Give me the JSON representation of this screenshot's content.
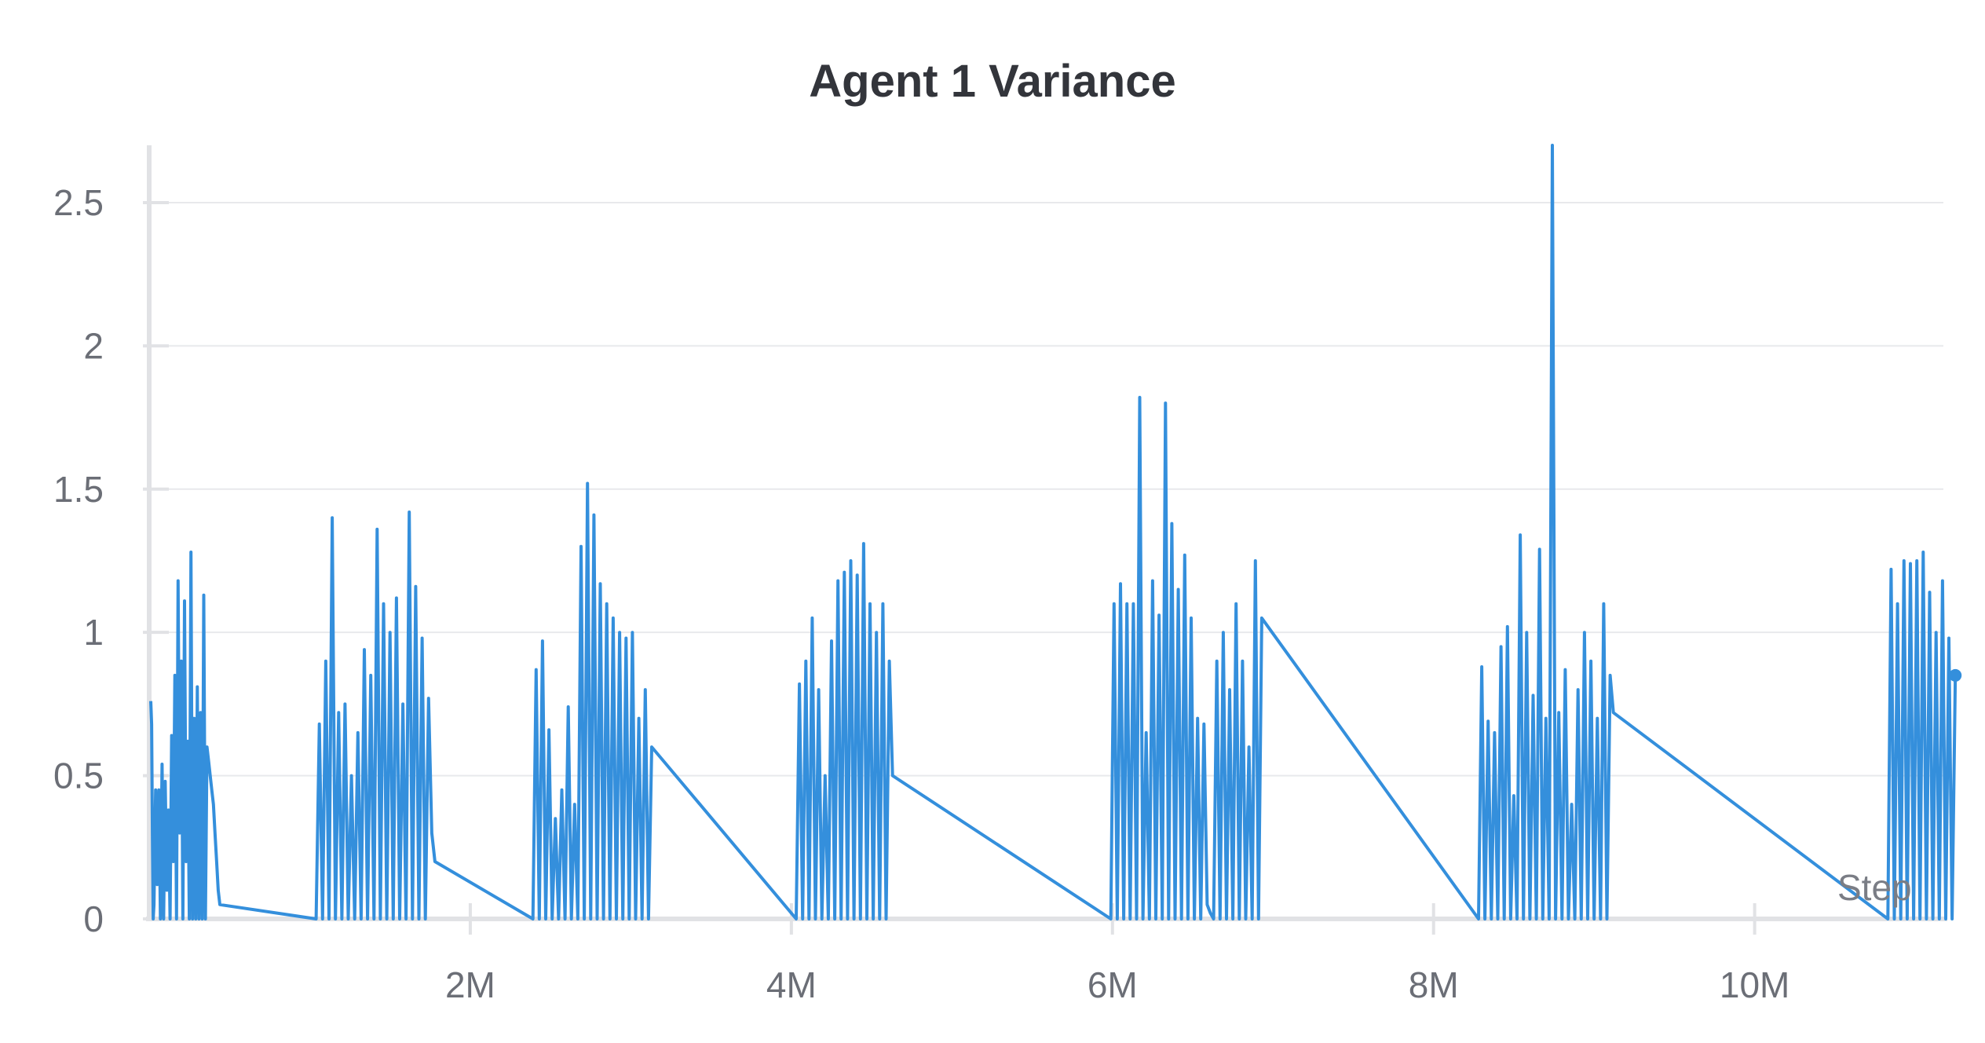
{
  "chart_data": {
    "type": "line",
    "title": "Agent 1 Variance",
    "xlabel": "Step",
    "ylabel": "",
    "xlim": [
      0,
      11200000
    ],
    "ylim": [
      0,
      2.7
    ],
    "grid": true,
    "legend": "none",
    "x_ticks": [
      {
        "value": 2000000,
        "label": "2M"
      },
      {
        "value": 4000000,
        "label": "4M"
      },
      {
        "value": 6000000,
        "label": "6M"
      },
      {
        "value": 8000000,
        "label": "8M"
      },
      {
        "value": 10000000,
        "label": "10M"
      }
    ],
    "y_ticks": [
      {
        "value": 0,
        "label": "0"
      },
      {
        "value": 0.5,
        "label": "0.5"
      },
      {
        "value": 1,
        "label": "1"
      },
      {
        "value": 1.5,
        "label": "1.5"
      },
      {
        "value": 2,
        "label": "2"
      },
      {
        "value": 2.5,
        "label": "2.5"
      }
    ],
    "color": "#348fdc",
    "series": [
      {
        "name": "",
        "x": [
          10000,
          15000,
          20000,
          25000,
          30000,
          40000,
          50000,
          60000,
          70000,
          80000,
          90000,
          100000,
          110000,
          120000,
          130000,
          140000,
          150000,
          160000,
          170000,
          180000,
          190000,
          200000,
          210000,
          220000,
          230000,
          240000,
          250000,
          260000,
          270000,
          280000,
          290000,
          300000,
          310000,
          320000,
          330000,
          340000,
          350000,
          360000,
          370000,
          380000,
          390000,
          400000,
          410000,
          420000,
          430000,
          440000,
          1040000,
          1060000,
          1080000,
          1100000,
          1120000,
          1140000,
          1160000,
          1180000,
          1200000,
          1220000,
          1240000,
          1260000,
          1280000,
          1300000,
          1320000,
          1340000,
          1360000,
          1380000,
          1400000,
          1420000,
          1440000,
          1460000,
          1480000,
          1500000,
          1520000,
          1540000,
          1560000,
          1580000,
          1600000,
          1620000,
          1640000,
          1660000,
          1680000,
          1700000,
          1720000,
          1740000,
          1760000,
          1780000,
          2390000,
          2410000,
          2430000,
          2450000,
          2470000,
          2490000,
          2510000,
          2530000,
          2550000,
          2570000,
          2590000,
          2610000,
          2630000,
          2650000,
          2670000,
          2690000,
          2710000,
          2730000,
          2750000,
          2770000,
          2790000,
          2810000,
          2830000,
          2850000,
          2870000,
          2890000,
          2910000,
          2930000,
          2950000,
          2970000,
          2990000,
          3010000,
          3030000,
          3050000,
          3070000,
          3090000,
          3110000,
          3130000,
          4030000,
          4050000,
          4070000,
          4090000,
          4110000,
          4130000,
          4150000,
          4170000,
          4190000,
          4210000,
          4230000,
          4250000,
          4270000,
          4290000,
          4310000,
          4330000,
          4350000,
          4370000,
          4390000,
          4410000,
          4430000,
          4450000,
          4470000,
          4490000,
          4510000,
          4530000,
          4550000,
          4570000,
          4590000,
          4610000,
          4630000,
          5990000,
          6010000,
          6030000,
          6050000,
          6070000,
          6090000,
          6110000,
          6130000,
          6150000,
          6170000,
          6190000,
          6210000,
          6230000,
          6250000,
          6270000,
          6290000,
          6310000,
          6330000,
          6350000,
          6370000,
          6390000,
          6410000,
          6430000,
          6450000,
          6470000,
          6490000,
          6510000,
          6530000,
          6550000,
          6570000,
          6590000,
          6610000,
          6630000,
          6650000,
          6670000,
          6690000,
          6710000,
          6730000,
          6750000,
          6770000,
          6790000,
          6810000,
          6830000,
          6850000,
          6870000,
          6890000,
          6910000,
          6930000,
          8280000,
          8300000,
          8320000,
          8340000,
          8360000,
          8380000,
          8400000,
          8420000,
          8440000,
          8460000,
          8480000,
          8500000,
          8520000,
          8540000,
          8560000,
          8580000,
          8600000,
          8620000,
          8640000,
          8660000,
          8680000,
          8700000,
          8720000,
          8740000,
          8760000,
          8780000,
          8800000,
          8820000,
          8840000,
          8860000,
          8880000,
          8900000,
          8920000,
          8940000,
          8960000,
          8980000,
          9000000,
          9020000,
          9040000,
          9060000,
          9080000,
          9100000,
          9120000,
          10830000,
          10850000,
          10870000,
          10890000,
          10910000,
          10930000,
          10950000,
          10970000,
          10990000,
          11010000,
          11030000,
          11050000,
          11070000,
          11090000,
          11110000,
          11130000,
          11150000,
          11170000,
          11190000,
          11210000,
          11230000,
          11250000
        ],
        "y": [
          0.76,
          0.68,
          0.3,
          0.0,
          0.05,
          0.45,
          0.12,
          0.45,
          0.0,
          0.54,
          0.0,
          0.48,
          0.1,
          0.38,
          0.0,
          0.64,
          0.2,
          0.85,
          0.0,
          1.18,
          0.3,
          0.9,
          0.0,
          1.11,
          0.2,
          0.62,
          0.0,
          1.28,
          0.0,
          0.7,
          0.0,
          0.81,
          0.0,
          0.72,
          0.0,
          1.13,
          0.0,
          0.6,
          0.55,
          0.5,
          0.45,
          0.4,
          0.3,
          0.2,
          0.1,
          0.05,
          0.0,
          0.68,
          0.0,
          0.9,
          0.0,
          1.4,
          0.0,
          0.72,
          0.0,
          0.75,
          0.0,
          0.5,
          0.0,
          0.65,
          0.0,
          0.94,
          0.0,
          0.85,
          0.0,
          1.36,
          0.0,
          1.1,
          0.0,
          1.0,
          0.0,
          1.12,
          0.0,
          0.75,
          0.0,
          1.42,
          0.0,
          1.16,
          0.0,
          0.98,
          0.0,
          0.77,
          0.3,
          0.2,
          0.0,
          0.87,
          0.0,
          0.97,
          0.0,
          0.66,
          0.0,
          0.35,
          0.0,
          0.45,
          0.0,
          0.74,
          0.0,
          0.4,
          0.0,
          1.3,
          0.0,
          1.52,
          0.0,
          1.41,
          0.0,
          1.17,
          0.0,
          1.1,
          0.0,
          1.05,
          0.0,
          1.0,
          0.0,
          0.98,
          0.0,
          1.0,
          0.0,
          0.7,
          0.0,
          0.8,
          0.0,
          0.6,
          0.0,
          0.82,
          0.0,
          0.9,
          0.0,
          1.05,
          0.0,
          0.8,
          0.0,
          0.5,
          0.0,
          0.97,
          0.0,
          1.18,
          0.0,
          1.21,
          0.0,
          1.25,
          0.0,
          1.2,
          0.0,
          1.31,
          0.0,
          1.1,
          0.0,
          1.0,
          0.0,
          1.1,
          0.0,
          0.9,
          0.5,
          0.0,
          1.1,
          0.0,
          1.17,
          0.0,
          1.1,
          0.0,
          1.1,
          0.0,
          1.82,
          0.0,
          0.65,
          0.0,
          1.18,
          0.0,
          1.06,
          0.0,
          1.8,
          0.0,
          1.38,
          0.0,
          1.15,
          0.0,
          1.27,
          0.0,
          1.05,
          0.0,
          0.7,
          0.0,
          0.68,
          0.05,
          0.02,
          0.0,
          0.9,
          0.0,
          1.0,
          0.0,
          0.8,
          0.0,
          1.1,
          0.0,
          0.9,
          0.0,
          0.6,
          0.0,
          1.25,
          0.0,
          1.05,
          0.0,
          0.88,
          0.0,
          0.69,
          0.0,
          0.65,
          0.0,
          0.95,
          0.0,
          1.02,
          0.0,
          0.43,
          0.0,
          1.34,
          0.0,
          1.0,
          0.0,
          0.78,
          0.0,
          1.29,
          0.0,
          0.7,
          0.0,
          2.7,
          0.0,
          0.72,
          0.0,
          0.87,
          0.0,
          0.4,
          0.0,
          0.8,
          0.0,
          1.0,
          0.0,
          0.9,
          0.0,
          0.7,
          0.0,
          1.1,
          0.0,
          0.85,
          0.72,
          0.0,
          1.22,
          0.0,
          1.1,
          0.0,
          1.25,
          0.0,
          1.24,
          0.0,
          1.25,
          0.0,
          1.28,
          0.0,
          1.14,
          0.0,
          1.0,
          0.0,
          1.18,
          0.0,
          0.98,
          0.0,
          0.85
        ]
      }
    ]
  }
}
